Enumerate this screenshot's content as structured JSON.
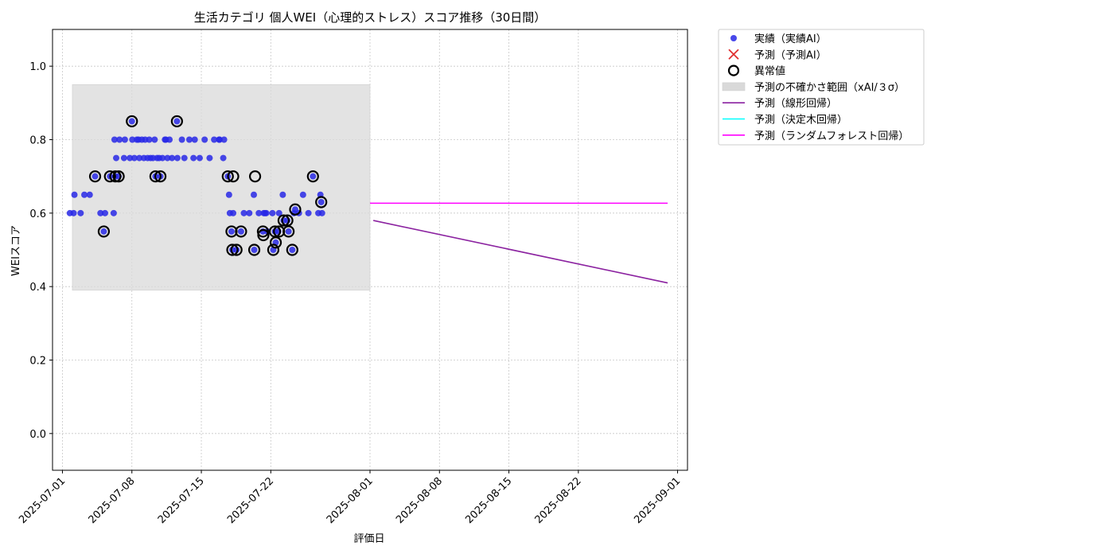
{
  "chart_data": {
    "type": "scatter",
    "title": "生活カテゴリ 個人WEI（心理的ストレス）スコア推移（30日間）",
    "xlabel": "評価日",
    "ylabel": "WEIスコア",
    "ylim": [
      -0.1,
      1.1
    ],
    "xlim": [
      "2025-06-30T00:00",
      "2025-09-02T00:00"
    ],
    "grid": true,
    "legend_position": "outside-top-right",
    "yticks": [
      0.0,
      0.2,
      0.4,
      0.6,
      0.8,
      1.0
    ],
    "ytick_labels": [
      "0.0",
      "0.2",
      "0.4",
      "0.6",
      "0.8",
      "1.0"
    ],
    "xticks": [
      "2025-07-01",
      "2025-07-08",
      "2025-07-15",
      "2025-07-22",
      "2025-08-01",
      "2025-08-08",
      "2025-08-15",
      "2025-08-22",
      "2025-09-01"
    ],
    "legend": [
      {
        "label": "実績（実績AI）",
        "kind": "point",
        "color": "#2828e6"
      },
      {
        "label": "予測（予測AI）",
        "kind": "x",
        "color": "#e03131"
      },
      {
        "label": "異常値",
        "kind": "ring",
        "color": "#000000"
      },
      {
        "label": "予測の不確かさ範囲（xAI/３σ）",
        "kind": "band",
        "color": "#d9d9d9"
      },
      {
        "label": "予測（線形回帰）",
        "kind": "line",
        "color": "#8b22a0"
      },
      {
        "label": "予測（決定木回帰）",
        "kind": "line",
        "color": "#00ffff"
      },
      {
        "label": "予測（ランダムフォレスト回帰）",
        "kind": "line",
        "color": "#ff00ff"
      }
    ],
    "uncertainty_band": {
      "x": [
        "2025-07-02T00:00",
        "2025-08-01T00:00"
      ],
      "y": [
        0.39,
        0.95
      ]
    },
    "series": [
      {
        "name": "実績（実績AI）",
        "color": "#2828e6",
        "points": [
          [
            "2025-07-01T18:00",
            0.6
          ],
          [
            "2025-07-02T03:00",
            0.6
          ],
          [
            "2025-07-02T05:00",
            0.65
          ],
          [
            "2025-07-02T20:00",
            0.6
          ],
          [
            "2025-07-03T05:00",
            0.65
          ],
          [
            "2025-07-03T18:00",
            0.65
          ],
          [
            "2025-07-04T07:00",
            0.7
          ],
          [
            "2025-07-04T20:00",
            0.6
          ],
          [
            "2025-07-05T04:00",
            0.55
          ],
          [
            "2025-07-05T07:00",
            0.6
          ],
          [
            "2025-07-05T19:00",
            0.7
          ],
          [
            "2025-07-06T04:00",
            0.6
          ],
          [
            "2025-07-06T06:00",
            0.8
          ],
          [
            "2025-07-06T08:00",
            0.7
          ],
          [
            "2025-07-06T10:00",
            0.75
          ],
          [
            "2025-07-06T16:00",
            0.7
          ],
          [
            "2025-07-06T18:00",
            0.8
          ],
          [
            "2025-07-07T05:00",
            0.75
          ],
          [
            "2025-07-07T07:00",
            0.8
          ],
          [
            "2025-07-07T19:00",
            0.75
          ],
          [
            "2025-07-08T00:00",
            0.85
          ],
          [
            "2025-07-08T01:00",
            0.8
          ],
          [
            "2025-07-08T06:00",
            0.75
          ],
          [
            "2025-07-08T12:00",
            0.8
          ],
          [
            "2025-07-08T16:00",
            0.8
          ],
          [
            "2025-07-08T18:00",
            0.75
          ],
          [
            "2025-07-09T00:00",
            0.8
          ],
          [
            "2025-07-09T05:00",
            0.75
          ],
          [
            "2025-07-09T08:00",
            0.8
          ],
          [
            "2025-07-09T14:00",
            0.75
          ],
          [
            "2025-07-09T18:00",
            0.8
          ],
          [
            "2025-07-09T21:00",
            0.75
          ],
          [
            "2025-07-10T03:00",
            0.75
          ],
          [
            "2025-07-10T07:00",
            0.8
          ],
          [
            "2025-07-10T09:00",
            0.7
          ],
          [
            "2025-07-10T13:00",
            0.75
          ],
          [
            "2025-07-10T18:00",
            0.75
          ],
          [
            "2025-07-10T21:00",
            0.7
          ],
          [
            "2025-07-11T02:00",
            0.75
          ],
          [
            "2025-07-11T08:00",
            0.8
          ],
          [
            "2025-07-11T10:00",
            0.8
          ],
          [
            "2025-07-11T14:00",
            0.75
          ],
          [
            "2025-07-11T19:00",
            0.8
          ],
          [
            "2025-07-12T01:00",
            0.75
          ],
          [
            "2025-07-12T13:00",
            0.85
          ],
          [
            "2025-07-12T14:00",
            0.75
          ],
          [
            "2025-07-13T01:00",
            0.8
          ],
          [
            "2025-07-13T07:00",
            0.75
          ],
          [
            "2025-07-13T19:00",
            0.8
          ],
          [
            "2025-07-14T05:00",
            0.75
          ],
          [
            "2025-07-14T08:00",
            0.8
          ],
          [
            "2025-07-14T20:00",
            0.75
          ],
          [
            "2025-07-15T08:00",
            0.8
          ],
          [
            "2025-07-15T20:00",
            0.75
          ],
          [
            "2025-07-16T07:00",
            0.8
          ],
          [
            "2025-07-16T19:00",
            0.8
          ],
          [
            "2025-07-16T20:00",
            0.8
          ],
          [
            "2025-07-17T05:00",
            0.75
          ],
          [
            "2025-07-17T07:00",
            0.8
          ],
          [
            "2025-07-17T16:00",
            0.7
          ],
          [
            "2025-07-17T19:00",
            0.65
          ],
          [
            "2025-07-17T21:00",
            0.6
          ],
          [
            "2025-07-18T01:00",
            0.55
          ],
          [
            "2025-07-18T03:00",
            0.5
          ],
          [
            "2025-07-18T05:00",
            0.6
          ],
          [
            "2025-07-18T13:00",
            0.5
          ],
          [
            "2025-07-19T00:00",
            0.55
          ],
          [
            "2025-07-19T07:00",
            0.6
          ],
          [
            "2025-07-19T20:00",
            0.6
          ],
          [
            "2025-07-20T07:00",
            0.65
          ],
          [
            "2025-07-20T08:00",
            0.5
          ],
          [
            "2025-07-20T19:00",
            0.6
          ],
          [
            "2025-07-21T05:00",
            0.55
          ],
          [
            "2025-07-21T07:00",
            0.6
          ],
          [
            "2025-07-21T10:00",
            0.6
          ],
          [
            "2025-07-21T13:00",
            0.6
          ],
          [
            "2025-07-21T16:00",
            0.55
          ],
          [
            "2025-07-22T04:00",
            0.6
          ],
          [
            "2025-07-22T06:00",
            0.5
          ],
          [
            "2025-07-22T10:00",
            0.55
          ],
          [
            "2025-07-22T12:00",
            0.52
          ],
          [
            "2025-07-22T18:00",
            0.55
          ],
          [
            "2025-07-22T20:00",
            0.6
          ],
          [
            "2025-07-23T05:00",
            0.65
          ],
          [
            "2025-07-23T07:00",
            0.58
          ],
          [
            "2025-07-23T16:00",
            0.58
          ],
          [
            "2025-07-23T19:00",
            0.55
          ],
          [
            "2025-07-24T04:00",
            0.5
          ],
          [
            "2025-07-24T08:00",
            0.6
          ],
          [
            "2025-07-24T11:00",
            0.61
          ],
          [
            "2025-07-24T20:00",
            0.6
          ],
          [
            "2025-07-25T06:00",
            0.65
          ],
          [
            "2025-07-25T19:00",
            0.6
          ],
          [
            "2025-07-26T06:00",
            0.7
          ],
          [
            "2025-07-26T19:00",
            0.6
          ],
          [
            "2025-07-27T00:00",
            0.65
          ],
          [
            "2025-07-27T02:00",
            0.63
          ],
          [
            "2025-07-27T04:00",
            0.6
          ]
        ]
      }
    ],
    "anomalies": [
      [
        "2025-07-04T07:00",
        0.7
      ],
      [
        "2025-07-05T04:00",
        0.55
      ],
      [
        "2025-07-05T19:00",
        0.7
      ],
      [
        "2025-07-06T08:00",
        0.7
      ],
      [
        "2025-07-06T16:00",
        0.7
      ],
      [
        "2025-07-08T00:00",
        0.85
      ],
      [
        "2025-07-10T09:00",
        0.7
      ],
      [
        "2025-07-10T21:00",
        0.7
      ],
      [
        "2025-07-12T13:00",
        0.85
      ],
      [
        "2025-07-17T16:00",
        0.7
      ],
      [
        "2025-07-18T01:00",
        0.55
      ],
      [
        "2025-07-18T03:00",
        0.5
      ],
      [
        "2025-07-18T05:00",
        0.7
      ],
      [
        "2025-07-18T13:00",
        0.5
      ],
      [
        "2025-07-19T00:00",
        0.55
      ],
      [
        "2025-07-20T08:00",
        0.5
      ],
      [
        "2025-07-20T10:00",
        0.7
      ],
      [
        "2025-07-21T05:00",
        0.55
      ],
      [
        "2025-07-21T06:00",
        0.54
      ],
      [
        "2025-07-22T06:00",
        0.5
      ],
      [
        "2025-07-22T10:00",
        0.55
      ],
      [
        "2025-07-22T12:00",
        0.52
      ],
      [
        "2025-07-22T20:00",
        0.55
      ],
      [
        "2025-07-23T07:00",
        0.58
      ],
      [
        "2025-07-23T16:00",
        0.58
      ],
      [
        "2025-07-23T19:00",
        0.55
      ],
      [
        "2025-07-24T04:00",
        0.5
      ],
      [
        "2025-07-24T11:00",
        0.61
      ],
      [
        "2025-07-26T06:00",
        0.7
      ],
      [
        "2025-07-27T02:00",
        0.63
      ]
    ],
    "forecast_lines": [
      {
        "name": "予測（線形回帰）",
        "color": "#8b22a0",
        "points": [
          [
            "2025-08-01T08:00",
            0.58
          ],
          [
            "2025-08-31T00:00",
            0.41
          ]
        ]
      },
      {
        "name": "予測（ランダムフォレスト回帰）",
        "color": "#ff00ff",
        "points": [
          [
            "2025-08-01T00:00",
            0.627
          ],
          [
            "2025-08-31T00:00",
            0.627
          ]
        ]
      }
    ]
  }
}
